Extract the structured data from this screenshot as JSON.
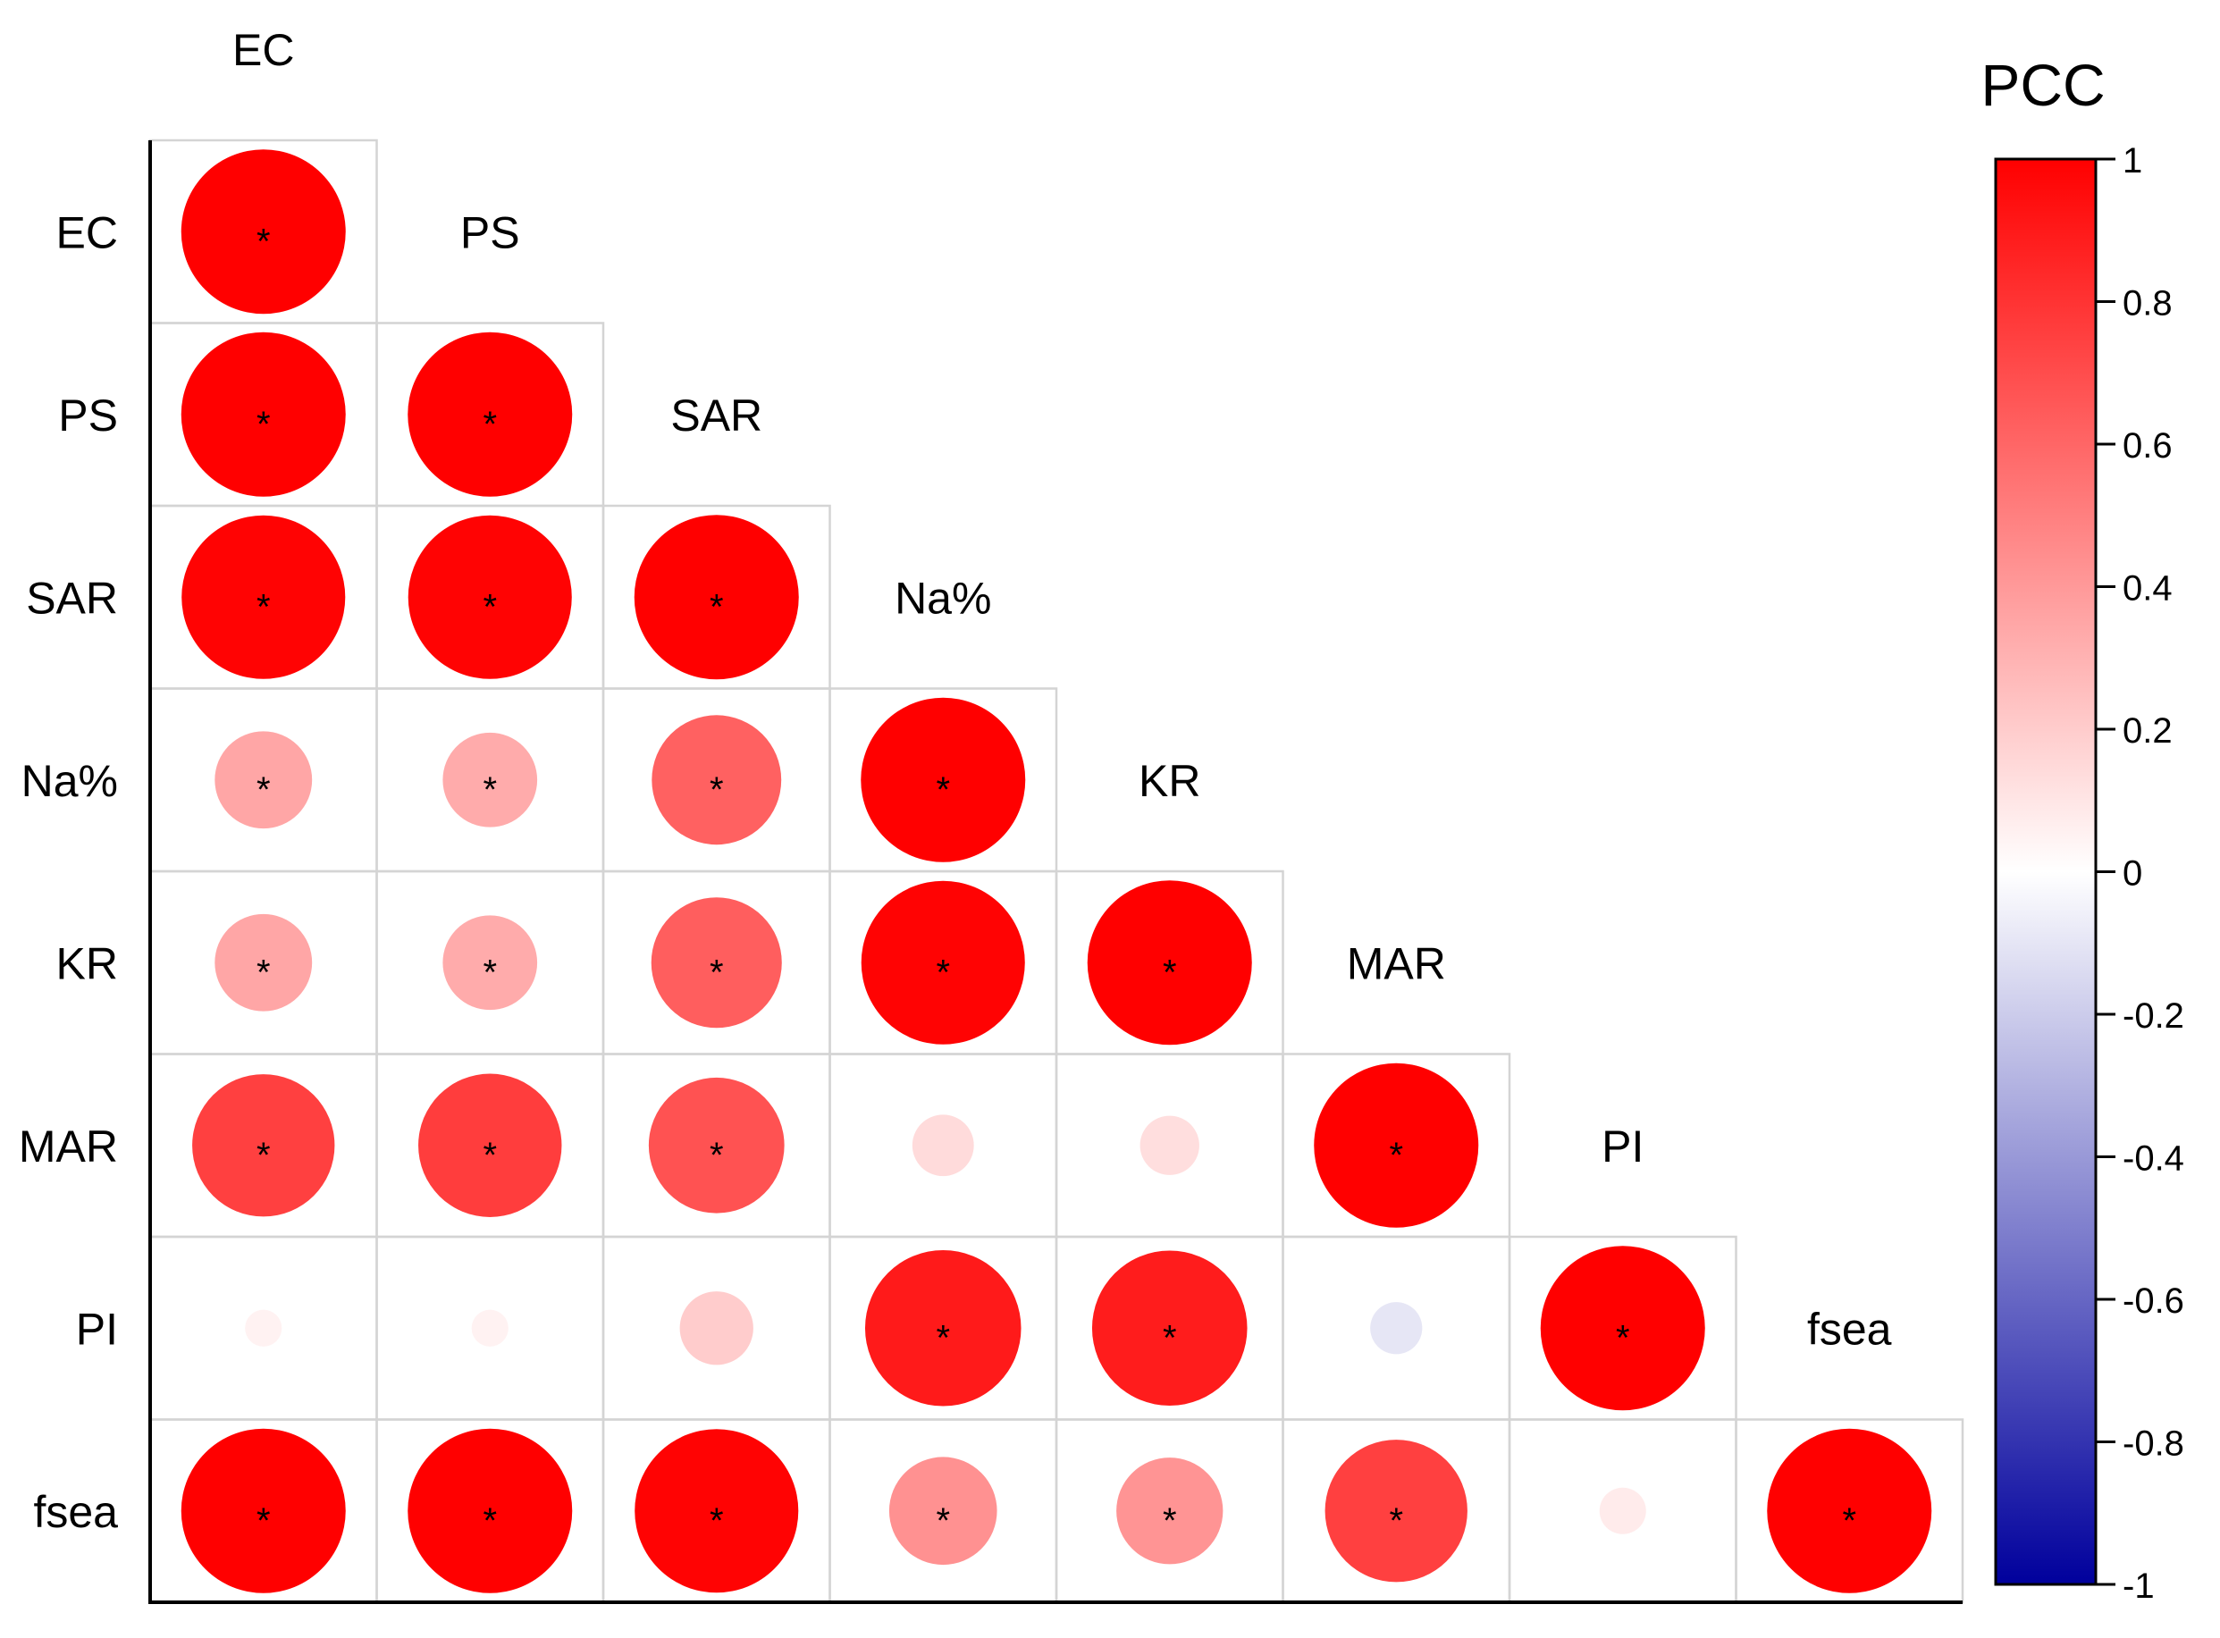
{
  "chart_data": {
    "type": "heatmap",
    "title": "",
    "variables": [
      "EC",
      "PS",
      "SAR",
      "Na%",
      "KR",
      "MAR",
      "PI",
      "fsea"
    ],
    "matrix": [
      [
        1.0,
        1.0,
        0.99,
        0.35,
        0.35,
        0.75,
        0.05,
        1.0
      ],
      [
        1.0,
        1.0,
        0.99,
        0.33,
        0.33,
        0.76,
        0.05,
        1.0
      ],
      [
        0.99,
        0.99,
        1.0,
        0.62,
        0.63,
        0.68,
        0.2,
        0.99
      ],
      [
        0.35,
        0.33,
        0.62,
        1.0,
        0.99,
        0.14,
        0.9,
        0.43
      ],
      [
        0.35,
        0.33,
        0.63,
        0.99,
        1.0,
        0.13,
        0.89,
        0.42
      ],
      [
        0.75,
        0.76,
        0.68,
        0.14,
        0.13,
        1.0,
        -0.1,
        0.75
      ],
      [
        0.05,
        0.05,
        0.2,
        0.9,
        0.89,
        -0.1,
        1.0,
        0.08
      ],
      [
        1.0,
        1.0,
        0.99,
        0.43,
        0.42,
        0.75,
        0.08,
        1.0
      ]
    ],
    "significant": [
      [
        true,
        true,
        true,
        true,
        true,
        true,
        false,
        true
      ],
      [
        true,
        true,
        true,
        true,
        true,
        true,
        false,
        true
      ],
      [
        true,
        true,
        true,
        true,
        true,
        true,
        false,
        true
      ],
      [
        true,
        true,
        true,
        true,
        true,
        false,
        true,
        true
      ],
      [
        true,
        true,
        true,
        true,
        true,
        false,
        true,
        true
      ],
      [
        true,
        true,
        true,
        false,
        false,
        true,
        false,
        true
      ],
      [
        false,
        false,
        false,
        true,
        true,
        false,
        true,
        false
      ],
      [
        true,
        true,
        true,
        true,
        true,
        true,
        false,
        true
      ]
    ],
    "significance_marker": "*",
    "triangle": "lower",
    "colorbar": {
      "title": "PCC",
      "min": -1,
      "max": 1,
      "ticks": [
        "1",
        "0.8",
        "0.6",
        "0.4",
        "0.2",
        "0",
        "-0.2",
        "-0.4",
        "-0.6",
        "-0.8",
        "-1"
      ],
      "colors": {
        "negative": "#00009c",
        "neutral": "#ffffff",
        "positive": "#ff0000"
      }
    },
    "grid_color": "#d4d4d4",
    "axis_color": "#000000",
    "legend_position": "right"
  }
}
